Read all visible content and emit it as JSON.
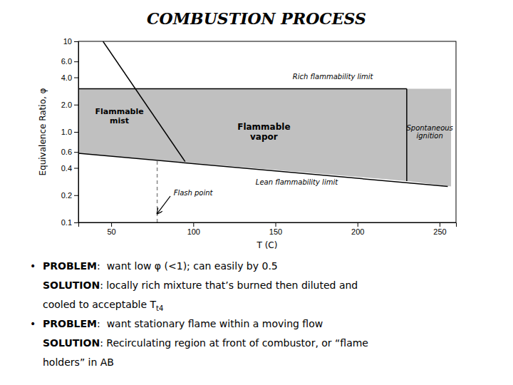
{
  "chart_data": {
    "type": "line",
    "title": "COMBUSTION PROCESS",
    "x_label": "T (C)",
    "y_label": "Equivalence Ratio, φ",
    "log": "y",
    "grid": false,
    "xlim": [
      30,
      260
    ],
    "ylim": [
      0.1,
      10
    ],
    "xticks": [
      50,
      100,
      150,
      200,
      250
    ],
    "yticks": [
      0.1,
      0.2,
      0.4,
      0.6,
      {
        "value": 1.0,
        "label": "1.0"
      },
      {
        "value": 2.0,
        "label": "2.0"
      },
      {
        "value": 4.0,
        "label": "4.0"
      },
      {
        "value": 6.0,
        "label": "6.0"
      },
      10
    ],
    "series": [
      {
        "type": "area",
        "color": "#c0c0c0",
        "x": [
          30,
          230,
          230,
          30
        ],
        "values": [
          3.0,
          3.0,
          0.286666667,
          0.58
        ]
      },
      {
        "type": "area",
        "color": "#c0c0c0",
        "x": [
          230,
          257,
          257,
          230
        ],
        "values": [
          3.0,
          3.0,
          0.25,
          0.286666667
        ]
      },
      {
        "type": "line",
        "color": "#000000",
        "x": [
          30,
          230
        ],
        "values": [
          3.0,
          3.0
        ]
      },
      {
        "type": "line",
        "color": "#000000",
        "x": [
          230,
          230
        ],
        "values": [
          0.286666667,
          3.0
        ]
      },
      {
        "type": "line",
        "color": "#000000",
        "x": [
          30,
          255
        ],
        "values": [
          0.58,
          0.25
        ]
      },
      {
        "type": "line",
        "color": "#000000",
        "x": [
          45,
          95
        ],
        "values": [
          10.0,
          0.47
        ]
      },
      {
        "type": "line",
        "color": "#888888",
        "line_style": "dashed",
        "x": [
          78,
          78
        ],
        "values": [
          0.1,
          0.5096
        ]
      },
      {
        "type": "arrow",
        "color": "#000000",
        "x": [
          86,
          78
        ],
        "values": [
          0.195,
          0.125
        ]
      }
    ],
    "annotations": [
      {
        "text": "Rich flammability limit",
        "x": 185,
        "y": 3.6
      },
      {
        "text": "Lean flammability limit",
        "x": 163,
        "y": 0.32
      },
      {
        "text": "Flash point",
        "x": 88,
        "y": 0.19
      },
      {
        "text": "Flammable\nmist",
        "x": 55,
        "y": 1.5
      },
      {
        "text": "Flammable\nvapor",
        "x": 143,
        "y": 1.0
      },
      {
        "text": "Spontaneous\nignition",
        "x": 244,
        "y": 1.0
      }
    ],
    "notes": [
      {
        "bullet": "•",
        "bold": "PROBLEM",
        "text": ":  want low φ (<1); can easily by 0.5"
      },
      {
        "bold": "SOLUTION",
        "text": ": locally rich mixture that’s burned then diluted and"
      },
      {
        "text": "cooled to acceptable T",
        "subscript": "t4"
      },
      {
        "bullet": "•",
        "bold": "PROBLEM",
        "text": ":  want stationary flame within a moving flow"
      },
      {
        "bold": "SOLUTION",
        "text": ": Recirculating region at front of combustor, or “flame"
      },
      {
        "text": "holders” in AB"
      }
    ]
  }
}
